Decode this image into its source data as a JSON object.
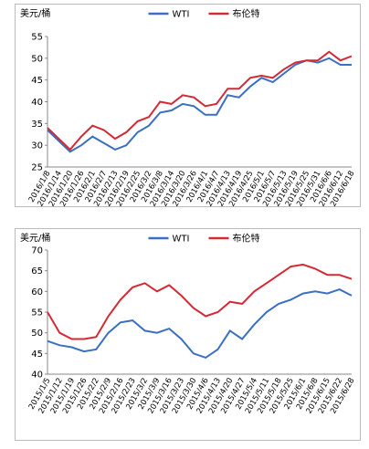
{
  "chart_data": [
    {
      "type": "line",
      "ylabel": "美元/桶",
      "categories": [
        "2016/1/8",
        "2016/1/14",
        "2016/1/20",
        "2016/1/26",
        "2016/2/1",
        "2016/2/7",
        "2016/2/13",
        "2016/2/19",
        "2016/2/25",
        "2016/3/2",
        "2016/3/8",
        "2016/3/14",
        "2016/3/20",
        "2016/3/26",
        "2016/4/1",
        "2016/4/7",
        "2016/4/13",
        "2016/4/19",
        "2016/4/25",
        "2016/5/1",
        "2016/5/7",
        "2016/5/13",
        "2016/5/19",
        "2016/5/25",
        "2016/5/31",
        "2016/6/6",
        "2016/6/12",
        "2016/6/18"
      ],
      "series": [
        {
          "name": "WTI",
          "color": "#3a6fc4",
          "values": [
            33.5,
            31,
            28.5,
            30,
            32,
            30.5,
            29,
            30,
            33,
            34.5,
            37.5,
            38,
            39.5,
            39,
            37,
            37,
            41.5,
            41,
            43.5,
            45.5,
            44.5,
            46.5,
            48.5,
            49.5,
            49,
            50,
            48.5,
            48.5
          ]
        },
        {
          "name": "布伦特",
          "color": "#d42a35",
          "values": [
            34,
            31.5,
            29,
            32,
            34.5,
            33.5,
            31.5,
            33,
            35.5,
            36.5,
            40,
            39.5,
            41.5,
            41,
            39,
            39.5,
            43,
            43,
            45.5,
            46,
            45.5,
            47.5,
            49,
            49.5,
            49.5,
            51.5,
            49.5,
            50.5
          ]
        }
      ],
      "ylim": [
        25,
        55
      ],
      "yticks": [
        25,
        30,
        35,
        40,
        45,
        50,
        55
      ]
    },
    {
      "type": "line",
      "ylabel": "美元/桶",
      "categories": [
        "2015/1/5",
        "2015/1/12",
        "2015/1/19",
        "2015/1/26",
        "2015/2/2",
        "2015/2/9",
        "2015/2/16",
        "2015/2/23",
        "2015/3/2",
        "2015/3/9",
        "2015/3/16",
        "2015/3/23",
        "2015/3/30",
        "2015/4/6",
        "2015/4/13",
        "2015/4/20",
        "2015/4/27",
        "2015/5/4",
        "2015/5/11",
        "2015/5/18",
        "2015/5/25",
        "2015/6/1",
        "2015/6/8",
        "2015/6/15",
        "2015/6/22",
        "2015/6/28"
      ],
      "series": [
        {
          "name": "WTI",
          "color": "#3a6fc4",
          "values": [
            48,
            47,
            46.5,
            45.5,
            46,
            50,
            52.5,
            53,
            50.5,
            50,
            51,
            48.5,
            45,
            44,
            46,
            50.5,
            48.5,
            52,
            55,
            57,
            58,
            59.5,
            60,
            59.5,
            60.5,
            59
          ]
        },
        {
          "name": "布伦特",
          "color": "#d42a35",
          "values": [
            55,
            50,
            48.5,
            48.5,
            49,
            54,
            58,
            61,
            62,
            60,
            61.5,
            59,
            56,
            54,
            55,
            57.5,
            57,
            60,
            62,
            64,
            66,
            66.5,
            65.5,
            64,
            64,
            63
          ]
        }
      ],
      "ylim": [
        40,
        70
      ],
      "yticks": [
        40,
        45,
        50,
        55,
        60,
        65,
        70
      ]
    }
  ]
}
